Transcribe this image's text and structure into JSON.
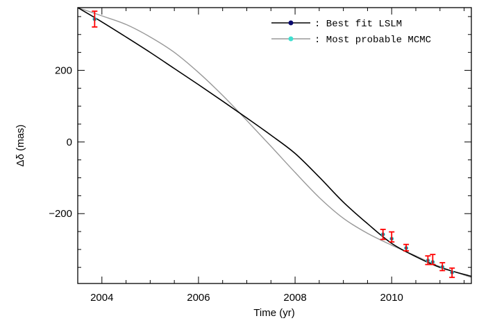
{
  "chart_data": {
    "type": "line",
    "title": "",
    "xlabel": "Time (yr)",
    "ylabel": "Δδ (mas)",
    "xlim": [
      2003.5,
      2011.65
    ],
    "ylim": [
      -395,
      375
    ],
    "xticks": [
      2004,
      2006,
      2008,
      2010
    ],
    "xtick_labels": [
      "2004",
      "2006",
      "2008",
      "2010"
    ],
    "yticks": [
      -200,
      0,
      200
    ],
    "ytick_labels": [
      "−200",
      "0",
      "200"
    ],
    "grid": false,
    "legend_position": "top-right",
    "series": [
      {
        "name": ": Best fit LSLM",
        "color": "#000000",
        "marker_color": "#0a0a6e",
        "x": [
          2003.5,
          2004.0,
          2004.5,
          2005.0,
          2005.5,
          2006.0,
          2006.5,
          2007.0,
          2007.5,
          2008.0,
          2008.5,
          2009.0,
          2009.5,
          2010.0,
          2010.5,
          2011.0,
          2011.65
        ],
        "y": [
          375,
          335,
          293,
          250,
          205,
          160,
          114,
          67,
          19,
          -32,
          -98,
          -168,
          -228,
          -283,
          -320,
          -350,
          -375
        ]
      },
      {
        "name": ": Most probable MCMC",
        "color": "#999999",
        "marker_color": "#40e0d0",
        "x": [
          2003.5,
          2004.0,
          2004.5,
          2005.0,
          2005.5,
          2006.0,
          2006.5,
          2007.0,
          2007.5,
          2008.0,
          2008.5,
          2009.0,
          2009.5,
          2010.0,
          2010.5,
          2011.0,
          2011.65
        ],
        "y": [
          375,
          352,
          328,
          293,
          250,
          194,
          130,
          60,
          -12,
          -85,
          -155,
          -213,
          -255,
          -288,
          -318,
          -348,
          -378
        ]
      }
    ],
    "observations": {
      "errorbar_color": "#ff0000",
      "points": [
        {
          "x": 2003.85,
          "y": 343,
          "err": 22,
          "model": 343
        },
        {
          "x": 2009.82,
          "y": -258,
          "err": 14,
          "model": -258
        },
        {
          "x": 2010.0,
          "y": -265,
          "err": 14,
          "model": -270
        },
        {
          "x": 2010.3,
          "y": -295,
          "err": 9,
          "model": -296
        },
        {
          "x": 2010.75,
          "y": -330,
          "err": 12,
          "model": -331
        },
        {
          "x": 2010.85,
          "y": -328,
          "err": 14,
          "model": -335
        },
        {
          "x": 2011.05,
          "y": -348,
          "err": 11,
          "model": -349
        },
        {
          "x": 2011.25,
          "y": -365,
          "err": 13,
          "model": -364
        }
      ]
    }
  }
}
